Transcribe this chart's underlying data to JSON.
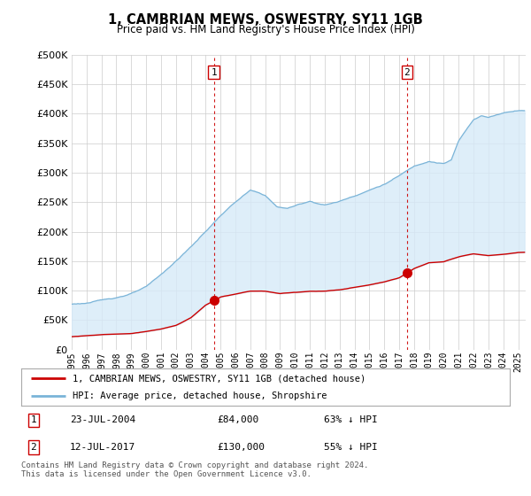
{
  "title": "1, CAMBRIAN MEWS, OSWESTRY, SY11 1GB",
  "subtitle": "Price paid vs. HM Land Registry's House Price Index (HPI)",
  "legend_line1": "1, CAMBRIAN MEWS, OSWESTRY, SY11 1GB (detached house)",
  "legend_line2": "HPI: Average price, detached house, Shropshire",
  "footnote": "Contains HM Land Registry data © Crown copyright and database right 2024.\nThis data is licensed under the Open Government Licence v3.0.",
  "sale1_label": "1",
  "sale1_date": "23-JUL-2004",
  "sale1_price": "£84,000",
  "sale1_pct": "63% ↓ HPI",
  "sale2_label": "2",
  "sale2_date": "12-JUL-2017",
  "sale2_price": "£130,000",
  "sale2_pct": "55% ↓ HPI",
  "hpi_color": "#7ab4d8",
  "hpi_fill_color": "#d6eaf8",
  "sale_color": "#cc0000",
  "marker_color": "#cc0000",
  "dashed_line_color": "#cc0000",
  "ylim": [
    0,
    500000
  ],
  "yticks": [
    0,
    50000,
    100000,
    150000,
    200000,
    250000,
    300000,
    350000,
    400000,
    450000,
    500000
  ],
  "xlim_start": 1995.0,
  "xlim_end": 2025.5,
  "sale1_x": 2004.55,
  "sale1_y": 84000,
  "sale2_x": 2017.53,
  "sale2_y": 130000,
  "background_color": "#ffffff",
  "plot_bg_color": "#ffffff",
  "grid_color": "#cccccc",
  "hpi_anchors_x": [
    1995.0,
    1996.0,
    1997.0,
    1998.0,
    1999.0,
    2000.0,
    2001.0,
    2002.0,
    2003.0,
    2004.0,
    2005.0,
    2006.0,
    2007.0,
    2008.0,
    2008.8,
    2009.5,
    2010.0,
    2011.0,
    2012.0,
    2013.0,
    2014.0,
    2015.0,
    2016.0,
    2017.0,
    2018.0,
    2019.0,
    2020.0,
    2020.5,
    2021.0,
    2022.0,
    2022.5,
    2023.0,
    2024.0,
    2025.0
  ],
  "hpi_anchors_y": [
    77000,
    79000,
    83000,
    88000,
    95000,
    105000,
    125000,
    148000,
    172000,
    198000,
    225000,
    248000,
    267000,
    258000,
    238000,
    236000,
    240000,
    248000,
    242000,
    248000,
    258000,
    268000,
    278000,
    292000,
    308000,
    318000,
    314000,
    320000,
    352000,
    388000,
    395000,
    392000,
    400000,
    405000
  ],
  "prop_anchors_x": [
    1995.0,
    1996.0,
    1997.0,
    1998.0,
    1999.0,
    2000.0,
    2001.0,
    2002.0,
    2003.0,
    2004.0,
    2005.0,
    2006.0,
    2007.0,
    2008.0,
    2009.0,
    2010.0,
    2011.0,
    2012.0,
    2013.0,
    2014.0,
    2015.0,
    2016.0,
    2017.0,
    2018.0,
    2019.0,
    2020.0,
    2021.0,
    2022.0,
    2023.0,
    2024.0,
    2025.0
  ],
  "prop_anchors_y": [
    22000,
    24000,
    26000,
    27000,
    28000,
    32000,
    36000,
    42000,
    55000,
    76000,
    90000,
    95000,
    100000,
    100000,
    96000,
    98000,
    100000,
    100000,
    102000,
    106000,
    110000,
    115000,
    122000,
    138000,
    148000,
    150000,
    158000,
    163000,
    160000,
    162000,
    165000
  ]
}
